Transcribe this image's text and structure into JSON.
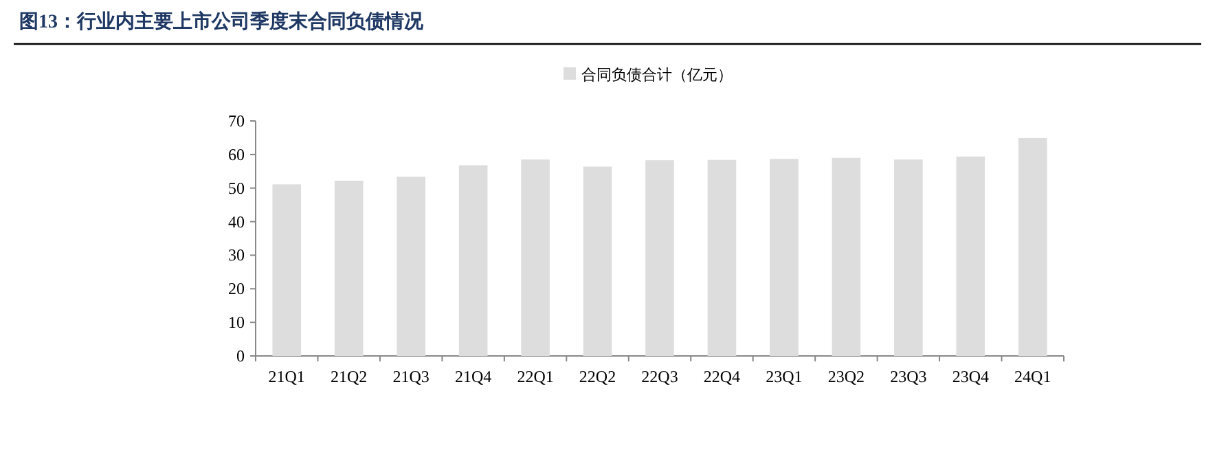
{
  "chart_data": {
    "type": "bar",
    "title": "图13：行业内主要上市公司季度末合同负债情况",
    "categories": [
      "21Q1",
      "21Q2",
      "21Q3",
      "21Q4",
      "22Q1",
      "22Q2",
      "22Q3",
      "22Q4",
      "23Q1",
      "23Q2",
      "23Q3",
      "23Q4",
      "24Q1"
    ],
    "series": [
      {
        "name": "合同负债合计（亿元）",
        "color": "#dddddd",
        "values": [
          51.1,
          52.2,
          53.4,
          56.8,
          58.5,
          56.4,
          58.3,
          58.4,
          58.7,
          59.0,
          58.5,
          59.4,
          64.9
        ]
      }
    ],
    "ylim": [
      0,
      70
    ],
    "yticks": [
      0,
      10,
      20,
      30,
      40,
      50,
      60,
      70
    ],
    "legend": "top"
  }
}
